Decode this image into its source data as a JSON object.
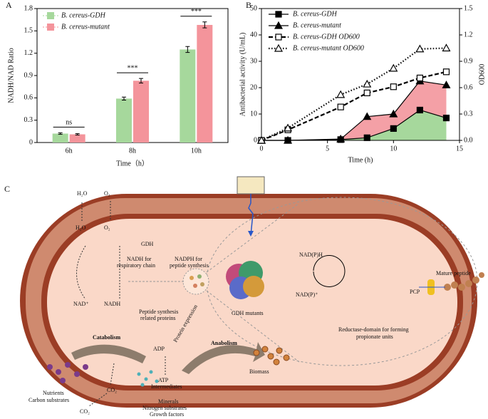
{
  "chart_data": [
    {
      "type": "bar",
      "panel": "A",
      "ylabel": "NADH/NAD Ratio",
      "xlabel": "Time（h）",
      "categories": [
        "6h",
        "8h",
        "10h"
      ],
      "series": [
        {
          "name": "B. cereus-GDH",
          "color": "#a6d89c",
          "values": [
            0.12,
            0.59,
            1.25
          ],
          "errors": [
            0.01,
            0.02,
            0.04
          ]
        },
        {
          "name": "B. cereus-mutant",
          "color": "#f4949b",
          "values": [
            0.11,
            0.83,
            1.58
          ],
          "errors": [
            0.01,
            0.03,
            0.04
          ]
        }
      ],
      "annotations": [
        "ns",
        "***",
        "***"
      ],
      "ylim": [
        0,
        1.8
      ],
      "yticks": [
        0,
        0.3,
        0.6,
        0.9,
        1.2,
        1.5,
        1.8
      ],
      "legend": "top-left"
    },
    {
      "type": "line",
      "panel": "B",
      "xlabel": "Time (h)",
      "ylabel": "Antibacterial activity (U/mL)",
      "y2label": "OD600",
      "x": [
        0,
        2,
        6,
        8,
        10,
        12,
        14
      ],
      "series": [
        {
          "name": "B. cereus-GDH",
          "color": "#000000",
          "fill": "#a6d89c",
          "marker": "square-filled",
          "line": "solid",
          "values": [
            0,
            0,
            0.3,
            1,
            4.5,
            11.5,
            8.5
          ]
        },
        {
          "name": "B. cereus-mutant",
          "color": "#000000",
          "fill": "#f4a0a6",
          "marker": "triangle-filled",
          "line": "solid",
          "values": [
            0,
            0,
            0.5,
            9,
            10,
            22.5,
            21
          ]
        },
        {
          "name": "B. cereus-GDH OD600",
          "color": "#000000",
          "marker": "square-open",
          "line": "dashed",
          "axis": "y2",
          "values": [
            0,
            0.12,
            0.38,
            0.54,
            0.61,
            0.71,
            0.78
          ]
        },
        {
          "name": "B. cereus-mutant OD600",
          "color": "#000000",
          "marker": "triangle-open",
          "line": "dotted",
          "axis": "y2",
          "values": [
            0,
            0.14,
            0.52,
            0.64,
            0.82,
            1.04,
            1.05
          ]
        }
      ],
      "xlim": [
        0,
        15
      ],
      "xticks": [
        0,
        5,
        10,
        15
      ],
      "ylim": [
        0,
        50
      ],
      "yticks": [
        0,
        10,
        20,
        30,
        40,
        50
      ],
      "y2lim": [
        0,
        1.5
      ],
      "y2ticks": [
        {
          "value": 0,
          "label": "0.0"
        },
        0.3,
        0.6,
        0.9,
        1.2,
        1.5
      ],
      "legend": "top-left"
    }
  ],
  "diagram": {
    "panel": "C",
    "water_top": "H₂O",
    "oxygen_top": "O₂",
    "water_inner": "H₂O",
    "oxygen_inner": "O₂",
    "gdh": "GDH",
    "nadh_resp": [
      "NADH for",
      "respiratory chain"
    ],
    "nadph_syn": [
      "NADPH for",
      "peptide synthesis"
    ],
    "nad": "NAD⁺",
    "nadh": "NADH",
    "peptide_proteins": [
      "Peptide synthesis",
      "related proteins"
    ],
    "protein_expression": "Protein expression",
    "adp": "ADP",
    "atp": "ATP",
    "intermediates": "Intermediates",
    "catabolism": "Catabolism",
    "anabolism": "Anabolism",
    "biomass": "Biomass",
    "co2_inner": "CO₂",
    "co2_outer": "CO₂",
    "nutrients": "Nutrients",
    "carbon": "Carbon substrates",
    "minerals": "Minerals",
    "nitrogen": "Nitrogen substrates",
    "growth": "Growth factors",
    "gdh_mutants": "GDH mutants",
    "nadph": "NAD(P)H",
    "nadp": "NAD(P)⁺",
    "reductase": [
      "Reductase-domain for forming",
      "propionate units"
    ],
    "pcp": "PCP",
    "mature": "Mature peptide"
  }
}
